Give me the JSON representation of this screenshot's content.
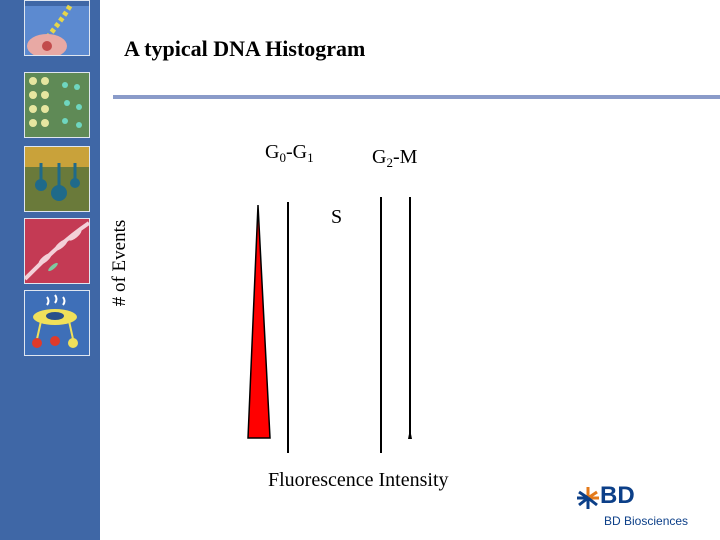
{
  "slide": {
    "title": "A typical DNA Histogram"
  },
  "sidebar": {
    "tiles": [
      "cell-cycle-icon",
      "dot-pattern-icon",
      "cell-cluster-icon",
      "leaf-icon",
      "cell-dish-icon"
    ]
  },
  "histogram": {
    "g0g1_main": "G",
    "g0g1_sub0": "0",
    "g0g1_dash": "-G",
    "g0g1_sub1": "1",
    "s_label": "S",
    "g2m_main": "G",
    "g2m_sub": "2",
    "g2m_dash": "-M",
    "y_axis_label": "# of Events",
    "x_axis_label": "Fluorescence Intensity",
    "peak_color": "#ff0000"
  },
  "logo": {
    "brand": "BD",
    "sub": "BD Biosciences",
    "color": "#0c3f88"
  }
}
